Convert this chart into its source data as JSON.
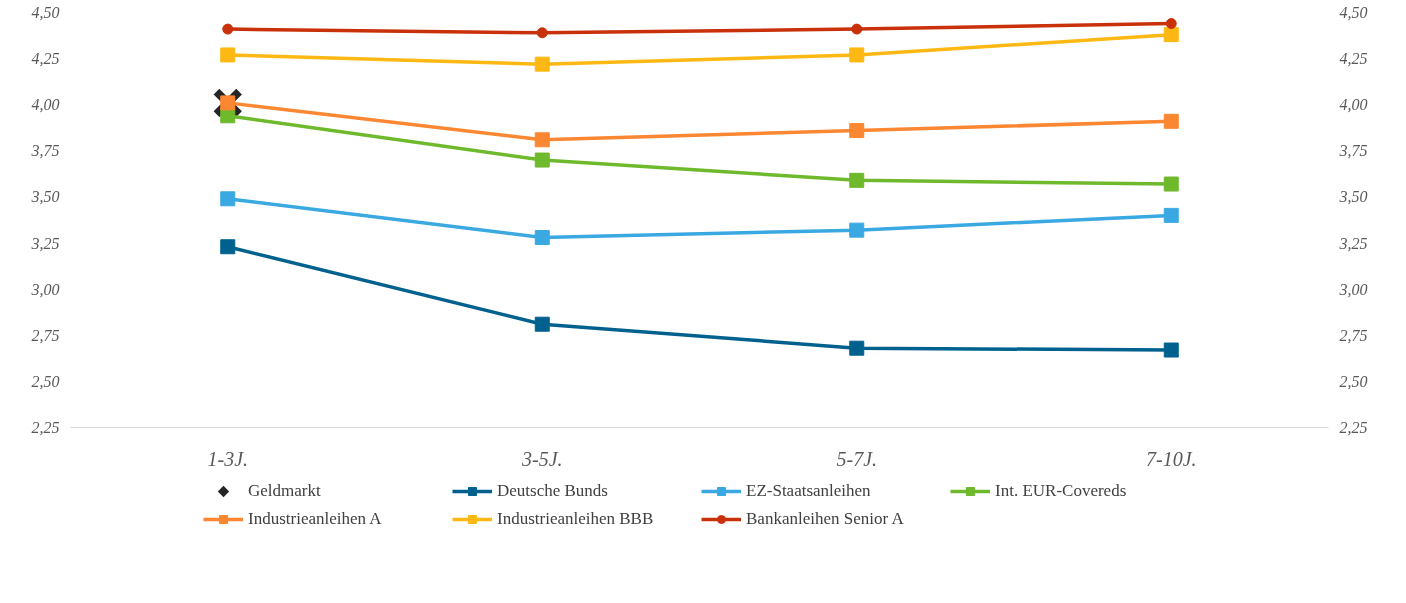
{
  "chart_data": {
    "type": "line",
    "categories": [
      "1-3J.",
      "3-5J.",
      "5-7J.",
      "7-10J."
    ],
    "series": [
      {
        "name": "Geldmarkt",
        "type": "scatter",
        "marker": "cross",
        "color": "#262626",
        "values": [
          4.01,
          null,
          null,
          null
        ]
      },
      {
        "name": "Deutsche Bunds",
        "color": "#00618f",
        "marker": "square",
        "values": [
          3.23,
          2.81,
          2.68,
          2.67
        ]
      },
      {
        "name": "EZ-Staatsanleihen",
        "color": "#3aa9e2",
        "marker": "square",
        "values": [
          3.49,
          3.28,
          3.32,
          3.4
        ]
      },
      {
        "name": "Int. EUR-Covereds",
        "color": "#6fb92c",
        "marker": "square",
        "values": [
          3.94,
          3.7,
          3.59,
          3.57
        ]
      },
      {
        "name": "Industrieanleihen A",
        "color": "#fb8732",
        "marker": "square",
        "values": [
          4.01,
          3.81,
          3.86,
          3.91
        ]
      },
      {
        "name": "Industrieanleihen BBB",
        "color": "#fdb813",
        "marker": "square",
        "values": [
          4.27,
          4.22,
          4.27,
          4.38
        ]
      },
      {
        "name": "Bankanleihen Senior A",
        "color": "#c9310b",
        "marker": "circle",
        "values": [
          4.41,
          4.39,
          4.41,
          4.44
        ]
      }
    ],
    "ylim": [
      2.25,
      4.5
    ],
    "yticks": [
      {
        "value": 2.25,
        "label": "2,25"
      },
      {
        "value": 2.5,
        "label": "2,50"
      },
      {
        "value": 2.75,
        "label": "2,75"
      },
      {
        "value": 3.0,
        "label": "3,00"
      },
      {
        "value": 3.25,
        "label": "3,25"
      },
      {
        "value": 3.5,
        "label": "3,50"
      },
      {
        "value": 3.75,
        "label": "3,75"
      },
      {
        "value": 4.0,
        "label": "4,00"
      },
      {
        "value": 4.25,
        "label": "4,25"
      },
      {
        "value": 4.5,
        "label": "4,50"
      }
    ],
    "y2lim": [
      2.25,
      4.5
    ],
    "y2ticks": [
      {
        "value": 2.25,
        "label": "2,25"
      },
      {
        "value": 2.5,
        "label": "2,50"
      },
      {
        "value": 2.75,
        "label": "2,75"
      },
      {
        "value": 3.0,
        "label": "3,00"
      },
      {
        "value": 3.25,
        "label": "3,25"
      },
      {
        "value": 3.5,
        "label": "3,50"
      },
      {
        "value": 3.75,
        "label": "3,75"
      },
      {
        "value": 4.0,
        "label": "4,00"
      },
      {
        "value": 4.25,
        "label": "4,25"
      },
      {
        "value": 4.5,
        "label": "4,50"
      }
    ],
    "grid": false,
    "legend": "bottom"
  }
}
